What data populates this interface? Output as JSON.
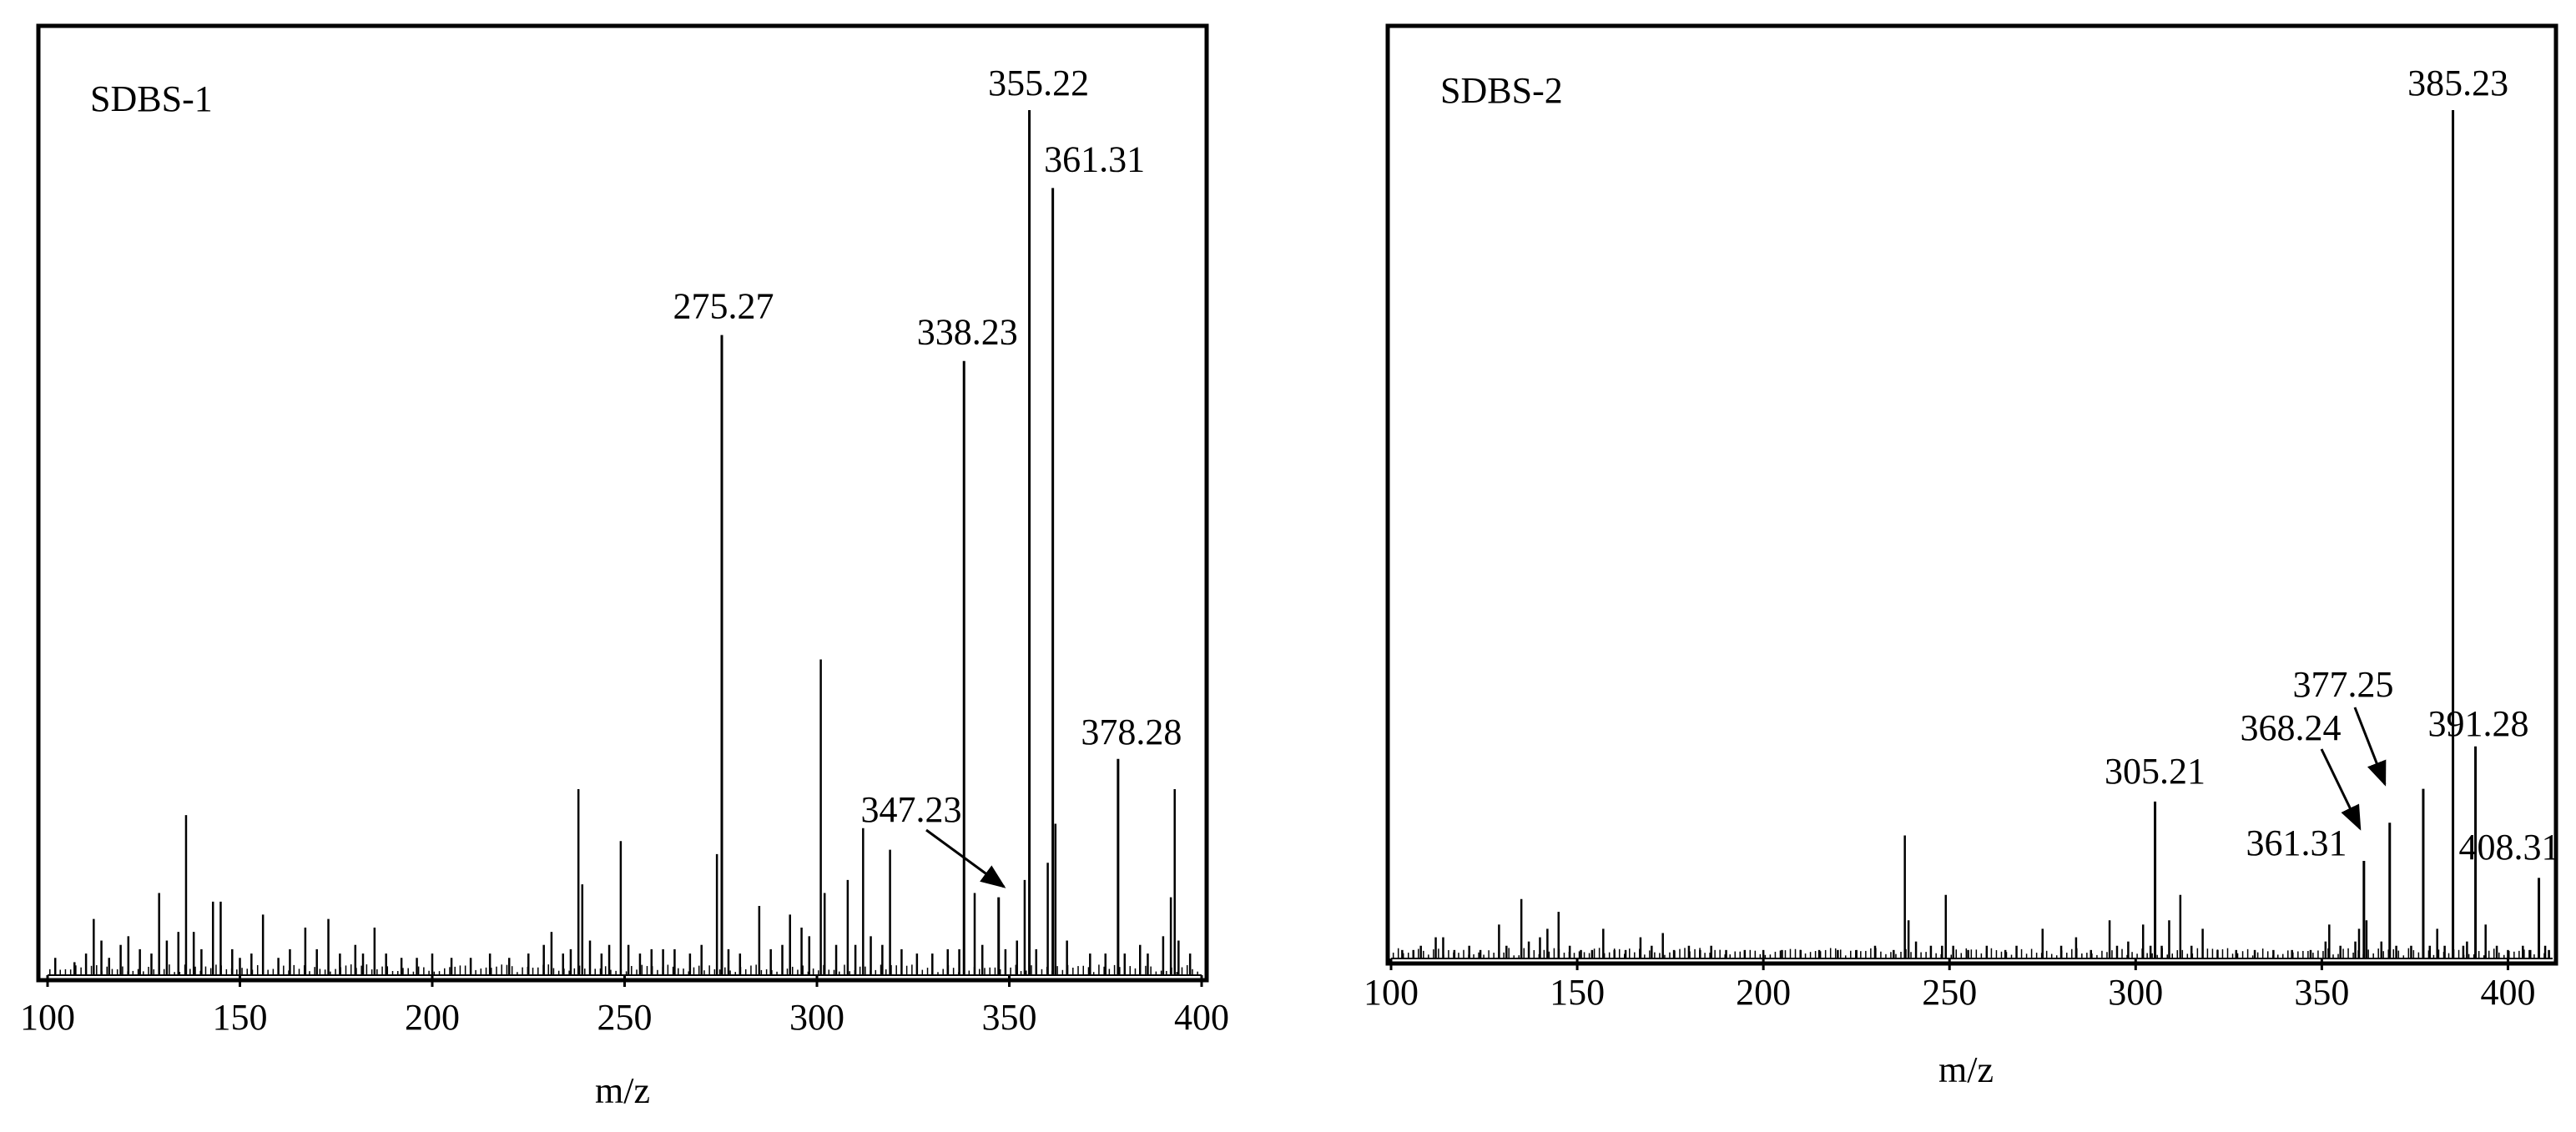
{
  "chart_data": [
    {
      "type": "bar",
      "title": "SDBS-1",
      "xlabel": "m/z",
      "ylabel": "",
      "xlim": [
        100,
        400
      ],
      "ylim": [
        0,
        100
      ],
      "grid": false,
      "x_ticks": [
        100,
        150,
        200,
        250,
        300,
        350,
        400
      ],
      "peaks": [
        {
          "x": 275.27,
          "y": 74,
          "label": "275.27"
        },
        {
          "x": 338.23,
          "y": 71,
          "label": "338.23"
        },
        {
          "x": 347.23,
          "y": 9,
          "label": "347.23",
          "arrow": true
        },
        {
          "x": 355.22,
          "y": 100,
          "label": "355.22"
        },
        {
          "x": 361.31,
          "y": 91,
          "label": "361.31"
        },
        {
          "x": 378.28,
          "y": 25,
          "label": "378.28"
        }
      ],
      "minor_peaks": [
        [
          102,
          2
        ],
        [
          107,
          1.5
        ],
        [
          110,
          2.5
        ],
        [
          112,
          6.5
        ],
        [
          114,
          4
        ],
        [
          116,
          2
        ],
        [
          119,
          3.5
        ],
        [
          121,
          4.5
        ],
        [
          124,
          3
        ],
        [
          127,
          2.5
        ],
        [
          129,
          9.5
        ],
        [
          131,
          4
        ],
        [
          134,
          5
        ],
        [
          136,
          18.5
        ],
        [
          138,
          5
        ],
        [
          140,
          3
        ],
        [
          143,
          8.5
        ],
        [
          145,
          8.5
        ],
        [
          148,
          3
        ],
        [
          150,
          2
        ],
        [
          153,
          2.5
        ],
        [
          156,
          7
        ],
        [
          160,
          2
        ],
        [
          163,
          3
        ],
        [
          167,
          5.5
        ],
        [
          170,
          3
        ],
        [
          173,
          6.5
        ],
        [
          176,
          2.5
        ],
        [
          180,
          3.5
        ],
        [
          182,
          2.5
        ],
        [
          185,
          5.5
        ],
        [
          188,
          2.5
        ],
        [
          192,
          2
        ],
        [
          196,
          2
        ],
        [
          200,
          2.5
        ],
        [
          205,
          2
        ],
        [
          210,
          2
        ],
        [
          215,
          2.5
        ],
        [
          220,
          2
        ],
        [
          225,
          2.5
        ],
        [
          229,
          3.5
        ],
        [
          231,
          5
        ],
        [
          234,
          2.5
        ],
        [
          236,
          3
        ],
        [
          238,
          21.5
        ],
        [
          239,
          10.5
        ],
        [
          241,
          4
        ],
        [
          244,
          2.5
        ],
        [
          246,
          3.5
        ],
        [
          249,
          15.5
        ],
        [
          251,
          3.5
        ],
        [
          254,
          2.5
        ],
        [
          257,
          3
        ],
        [
          260,
          3
        ],
        [
          263,
          3
        ],
        [
          267,
          2.5
        ],
        [
          270,
          3.5
        ],
        [
          274,
          14
        ],
        [
          277,
          3
        ],
        [
          280,
          2.5
        ],
        [
          285,
          8
        ],
        [
          288,
          3
        ],
        [
          291,
          3.5
        ],
        [
          293,
          7
        ],
        [
          296,
          5.5
        ],
        [
          298,
          4.5
        ],
        [
          301,
          36.5
        ],
        [
          302,
          9.5
        ],
        [
          305,
          3.5
        ],
        [
          308,
          11
        ],
        [
          310,
          3.5
        ],
        [
          312,
          17
        ],
        [
          314,
          4.5
        ],
        [
          317,
          3.5
        ],
        [
          319,
          14.5
        ],
        [
          322,
          3
        ],
        [
          326,
          2.5
        ],
        [
          330,
          2.5
        ],
        [
          334,
          3
        ],
        [
          337,
          3
        ],
        [
          341,
          9.5
        ],
        [
          343,
          3.5
        ],
        [
          349,
          3
        ],
        [
          352,
          4
        ],
        [
          354,
          11
        ],
        [
          357,
          3
        ],
        [
          360,
          13
        ],
        [
          362,
          17.5
        ],
        [
          365,
          4
        ],
        [
          371,
          2.5
        ],
        [
          375,
          2.5
        ],
        [
          380,
          2.5
        ],
        [
          384,
          3.5
        ],
        [
          386,
          2.5
        ],
        [
          390,
          4.5
        ],
        [
          392,
          9
        ],
        [
          393,
          21.5
        ],
        [
          394,
          4
        ],
        [
          397,
          2.5
        ]
      ]
    },
    {
      "type": "bar",
      "title": "SDBS-2",
      "xlabel": "m/z",
      "ylabel": "",
      "xlim": [
        100,
        412
      ],
      "ylim": [
        0,
        100
      ],
      "grid": false,
      "x_ticks": [
        100,
        150,
        200,
        250,
        300,
        350,
        400
      ],
      "peaks": [
        {
          "x": 305.21,
          "y": 18.5,
          "label": "305.21"
        },
        {
          "x": 361.31,
          "y": 11.5,
          "label": "361.31"
        },
        {
          "x": 368.24,
          "y": 16,
          "label": "368.24",
          "arrow": true
        },
        {
          "x": 377.25,
          "y": 20,
          "label": "377.25",
          "arrow": true
        },
        {
          "x": 385.23,
          "y": 100,
          "label": "385.23"
        },
        {
          "x": 391.28,
          "y": 25,
          "label": "391.28"
        },
        {
          "x": 408.31,
          "y": 9.5,
          "label": "408.31"
        }
      ],
      "minor_peaks": [
        [
          103,
          1
        ],
        [
          106,
          1
        ],
        [
          108,
          1.5
        ],
        [
          112,
          2.5
        ],
        [
          114,
          2.5
        ],
        [
          117,
          1
        ],
        [
          121,
          1.5
        ],
        [
          124,
          1
        ],
        [
          129,
          4
        ],
        [
          131,
          1.5
        ],
        [
          135,
          7
        ],
        [
          137,
          2
        ],
        [
          140,
          2.5
        ],
        [
          142,
          3.5
        ],
        [
          145,
          5.5
        ],
        [
          148,
          1.5
        ],
        [
          151,
          1
        ],
        [
          154,
          1
        ],
        [
          157,
          3.5
        ],
        [
          160,
          1
        ],
        [
          163,
          1
        ],
        [
          167,
          2.5
        ],
        [
          170,
          1.5
        ],
        [
          173,
          3
        ],
        [
          176,
          1
        ],
        [
          180,
          1.5
        ],
        [
          183,
          1
        ],
        [
          186,
          1.5
        ],
        [
          190,
          1
        ],
        [
          195,
          1
        ],
        [
          200,
          1
        ],
        [
          205,
          1
        ],
        [
          210,
          1
        ],
        [
          215,
          1
        ],
        [
          220,
          1
        ],
        [
          225,
          1
        ],
        [
          230,
          1.5
        ],
        [
          235,
          1
        ],
        [
          238,
          14.5
        ],
        [
          239,
          4.5
        ],
        [
          241,
          2
        ],
        [
          245,
          1.5
        ],
        [
          248,
          1.5
        ],
        [
          249,
          7.5
        ],
        [
          251,
          1.5
        ],
        [
          255,
          1
        ],
        [
          260,
          1.5
        ],
        [
          265,
          1
        ],
        [
          268,
          1.5
        ],
        [
          275,
          3.5
        ],
        [
          280,
          1.5
        ],
        [
          284,
          2.5
        ],
        [
          288,
          1
        ],
        [
          293,
          4.5
        ],
        [
          295,
          1.5
        ],
        [
          298,
          2
        ],
        [
          302,
          4
        ],
        [
          304,
          1.5
        ],
        [
          307,
          1.5
        ],
        [
          309,
          4.5
        ],
        [
          312,
          7.5
        ],
        [
          315,
          1.5
        ],
        [
          318,
          3.5
        ],
        [
          322,
          1
        ],
        [
          327,
          1
        ],
        [
          332,
          1
        ],
        [
          337,
          1
        ],
        [
          342,
          1
        ],
        [
          347,
          1
        ],
        [
          351,
          2
        ],
        [
          352,
          4
        ],
        [
          355,
          1.5
        ],
        [
          359,
          2
        ],
        [
          360,
          3.5
        ],
        [
          362,
          4.5
        ],
        [
          366,
          2
        ],
        [
          370,
          1.5
        ],
        [
          374,
          1.5
        ],
        [
          379,
          1.5
        ],
        [
          381,
          3.5
        ],
        [
          383,
          1.5
        ],
        [
          388,
          1.5
        ],
        [
          389,
          2
        ],
        [
          394,
          4
        ],
        [
          397,
          1.5
        ],
        [
          400,
          1
        ],
        [
          404,
          1.5
        ],
        [
          406,
          1
        ],
        [
          410,
          1.5
        ],
        [
          411,
          1
        ]
      ]
    }
  ]
}
